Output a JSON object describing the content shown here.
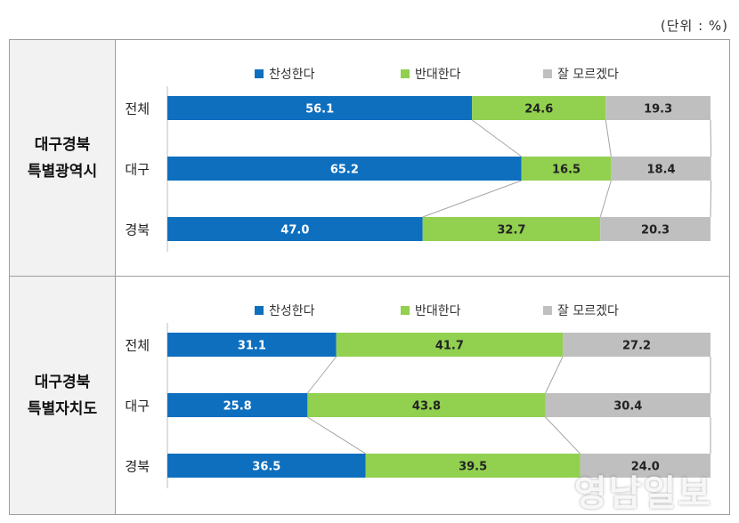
{
  "unit_label": "(단위 : %)",
  "watermark": "영남일보",
  "colors": {
    "agree": "#0e6fbf",
    "disagree": "#92d050",
    "unknown": "#bfbfbf"
  },
  "chart_data": [
    {
      "type": "bar",
      "stacked": true,
      "orientation": "horizontal",
      "group_label": "대구경북\n특별광역시",
      "categories": [
        "전체",
        "대구",
        "경북"
      ],
      "series": [
        {
          "name": "찬성한다",
          "values": [
            56.1,
            65.2,
            47.0
          ],
          "labels": [
            "56.1",
            "65.2",
            "47.0"
          ]
        },
        {
          "name": "반대한다",
          "values": [
            24.6,
            16.5,
            32.7
          ],
          "labels": [
            "24.6",
            "16.5",
            "32.7"
          ]
        },
        {
          "name": "잘 모르겠다",
          "values": [
            19.3,
            18.4,
            20.3
          ],
          "labels": [
            "19.3",
            "18.4",
            "20.3"
          ]
        }
      ],
      "xlim": [
        0,
        100
      ],
      "legend": "top"
    },
    {
      "type": "bar",
      "stacked": true,
      "orientation": "horizontal",
      "group_label": "대구경북\n특별자치도",
      "categories": [
        "전체",
        "대구",
        "경북"
      ],
      "series": [
        {
          "name": "찬성한다",
          "values": [
            31.1,
            25.8,
            36.5
          ],
          "labels": [
            "31.1",
            "25.8",
            "36.5"
          ]
        },
        {
          "name": "반대한다",
          "values": [
            41.7,
            43.8,
            39.5
          ],
          "labels": [
            "41.7",
            "43.8",
            "39.5"
          ]
        },
        {
          "name": "잘 모르겠다",
          "values": [
            27.2,
            30.4,
            24.0
          ],
          "labels": [
            "27.2",
            "30.4",
            "24.0"
          ]
        }
      ],
      "xlim": [
        0,
        100
      ],
      "legend": "top"
    }
  ]
}
